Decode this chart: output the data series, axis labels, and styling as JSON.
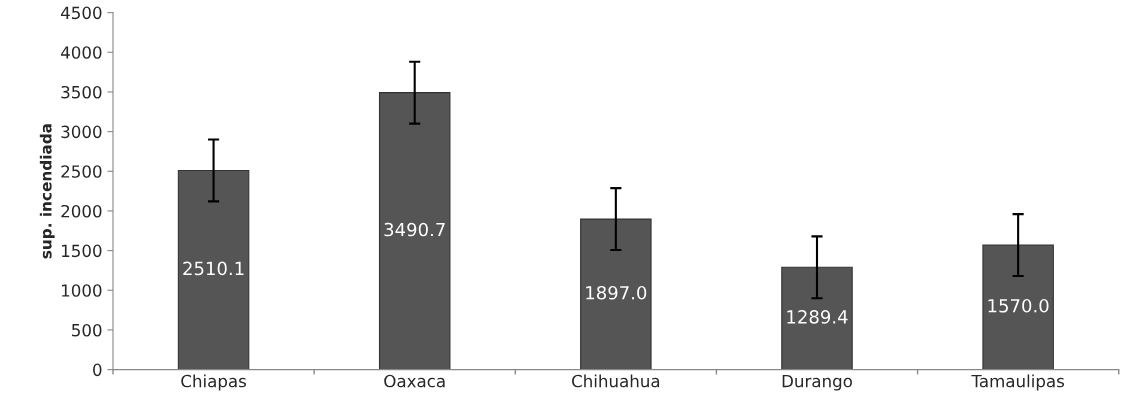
{
  "chart_data": {
    "type": "bar",
    "ylabel": "sup. incendiada",
    "categories": [
      "Chiapas",
      "Oaxaca",
      "Chihuahua",
      "Durango",
      "Tamaulipas"
    ],
    "values": [
      2510.1,
      3490.7,
      1897.0,
      1289.4,
      1570.0
    ],
    "errors": [
      390,
      390,
      390,
      390,
      390
    ],
    "color": "#555555",
    "value_labels": [
      "2510.1",
      "3490.7",
      "1897.0",
      "1289.4",
      "1570.0"
    ],
    "ylim": [
      0,
      4500
    ],
    "yticks": [
      0,
      500,
      1000,
      1500,
      2000,
      2500,
      3000,
      3500,
      4000,
      4500
    ],
    "grid": false
  }
}
